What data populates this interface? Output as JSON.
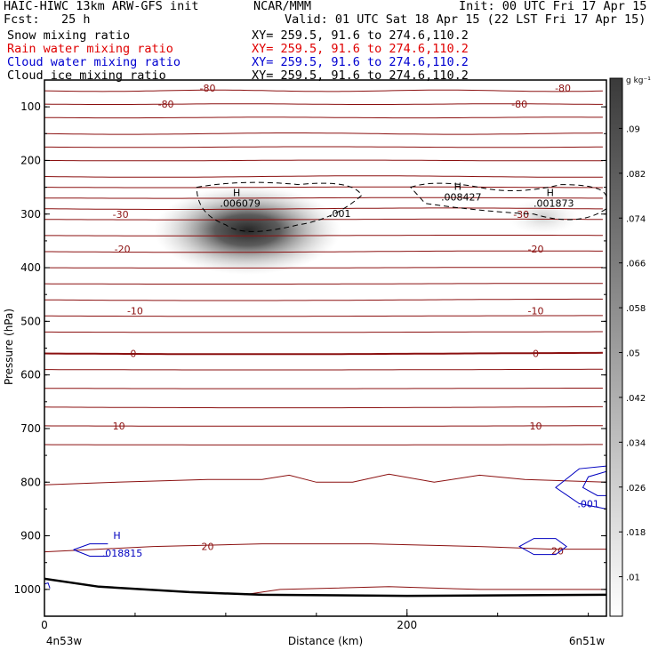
{
  "header": {
    "left_line1": "HAIC-HIWC 13km ARW-GFS init",
    "center_line1": "NCAR/MMM",
    "right_line1": "Init: 00 UTC Fri 17 Apr 15",
    "left_line2": "Fcst:   25 h",
    "right_line2": "Valid: 01 UTC Sat 18 Apr 15 (22 LST Fri 17 Apr 15)",
    "fields": [
      {
        "name": "Snow mixing ratio",
        "xy": "XY= 259.5, 91.6 to 274.6,110.2",
        "color": "#000000"
      },
      {
        "name": "Rain water mixing ratio",
        "xy": "XY= 259.5, 91.6 to 274.6,110.2",
        "color": "#e00000"
      },
      {
        "name": "Cloud water mixing ratio",
        "xy": "XY= 259.5, 91.6 to 274.6,110.2",
        "color": "#0000d0"
      },
      {
        "name": "Cloud ice mixing ratio",
        "xy": "XY= 259.5, 91.6 to 274.6,110.2",
        "color": "#000000"
      }
    ]
  },
  "chart_data": {
    "type": "heatmap",
    "xlabel": "Distance (km)",
    "ylabel": "Pressure (hPa)",
    "x_ticks": [
      "0",
      "200"
    ],
    "x_tick_values": [
      0,
      200
    ],
    "x_end_labels": {
      "left": "4n53w",
      "right": "6n51w"
    },
    "xlim": [
      0,
      310
    ],
    "y_ticks": [
      100,
      200,
      300,
      400,
      500,
      600,
      700,
      800,
      900,
      1000
    ],
    "ylim": [
      50,
      1050
    ],
    "colorbar": {
      "unit": "g kg⁻¹",
      "ticks": [
        ".01",
        ".018",
        ".026",
        ".034",
        ".042",
        ".05",
        ".058",
        ".066",
        ".074",
        ".082",
        ".09"
      ]
    },
    "temperature_contours": {
      "color": "#8b1010",
      "labels": [
        {
          "text": "-80",
          "x": 90,
          "p": 65
        },
        {
          "text": "-80",
          "x": 286,
          "p": 65
        },
        {
          "text": "-80",
          "x": 67,
          "p": 95
        },
        {
          "text": "-80",
          "x": 262,
          "p": 95
        },
        {
          "text": "-30",
          "x": 42,
          "p": 300
        },
        {
          "text": "-30",
          "x": 263,
          "p": 300
        },
        {
          "text": "-20",
          "x": 43,
          "p": 365
        },
        {
          "text": "-20",
          "x": 271,
          "p": 365
        },
        {
          "text": "-10",
          "x": 50,
          "p": 480
        },
        {
          "text": "-10",
          "x": 271,
          "p": 480
        },
        {
          "text": "0",
          "x": 49,
          "p": 560
        },
        {
          "text": "0",
          "x": 271,
          "p": 560
        },
        {
          "text": "10",
          "x": 41,
          "p": 695
        },
        {
          "text": "10",
          "x": 271,
          "p": 695
        },
        {
          "text": "20",
          "x": 90,
          "p": 920
        },
        {
          "text": "20",
          "x": 283,
          "p": 928
        }
      ]
    },
    "snow_maxima": [
      {
        "label": "H",
        "value": ".006079",
        "x": 106,
        "p": 286
      },
      {
        "label": "H",
        "value": ".008427",
        "x": 228,
        "p": 275
      },
      {
        "label": "H",
        "value": ".001873",
        "x": 279,
        "p": 286
      }
    ],
    "snow_contour_label": {
      "text": ".001",
      "x": 163,
      "p": 305
    },
    "cloud_water": {
      "color": "#0000c0",
      "maximum": {
        "label": "H",
        "value": ".018815",
        "x": 40,
        "p": 926
      },
      "contour_label": {
        "text": ".001",
        "x": 300,
        "p": 840
      }
    }
  }
}
